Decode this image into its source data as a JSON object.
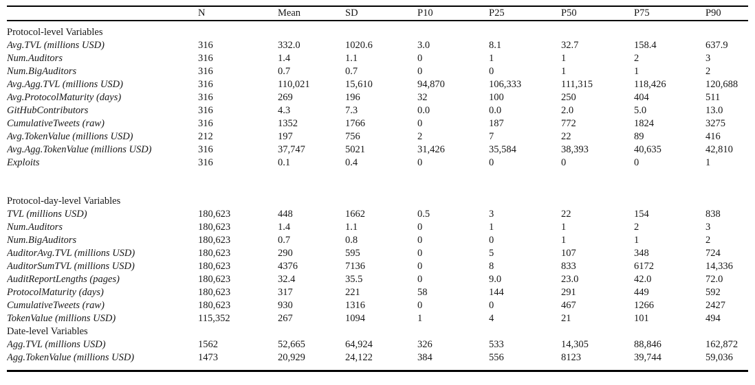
{
  "table": {
    "columns": [
      "N",
      "Mean",
      "SD",
      "P10",
      "P25",
      "P50",
      "P75",
      "P90"
    ],
    "sections": [
      {
        "title": "Protocol-level Variables",
        "gap_after": true,
        "rows": [
          {
            "label": "Avg.TVL (millions USD)",
            "values": [
              "316",
              "332.0",
              "1020.6",
              "3.0",
              "8.1",
              "32.7",
              "158.4",
              "637.9"
            ]
          },
          {
            "label": "Num.Auditors",
            "values": [
              "316",
              "1.4",
              "1.1",
              "0",
              "1",
              "1",
              "2",
              "3"
            ]
          },
          {
            "label": "Num.BigAuditors",
            "values": [
              "316",
              "0.7",
              "0.7",
              "0",
              "0",
              "1",
              "1",
              "2"
            ]
          },
          {
            "label": "Avg.Agg.TVL (millions USD)",
            "values": [
              "316",
              "110,021",
              "15,610",
              "94,870",
              "106,333",
              "111,315",
              "118,426",
              "120,688"
            ]
          },
          {
            "label": "Avg.ProtocolMaturity (days)",
            "values": [
              "316",
              "269",
              "196",
              "32",
              "100",
              "250",
              "404",
              "511"
            ]
          },
          {
            "label": "GitHubContributors",
            "values": [
              "316",
              "4.3",
              "7.3",
              "0.0",
              "0.0",
              "2.0",
              "5.0",
              "13.0"
            ]
          },
          {
            "label": "CumulativeTweets (raw)",
            "values": [
              "316",
              "1352",
              "1766",
              "0",
              "187",
              "772",
              "1824",
              "3275"
            ]
          },
          {
            "label": "Avg.TokenValue (millions USD)",
            "values": [
              "212",
              "197",
              "756",
              "2",
              "7",
              "22",
              "89",
              "416"
            ]
          },
          {
            "label": "Avg.Agg.TokenValue (millions USD)",
            "values": [
              "316",
              "37,747",
              "5021",
              "31,426",
              "35,584",
              "38,393",
              "40,635",
              "42,810"
            ]
          },
          {
            "label": "Exploits",
            "values": [
              "316",
              "0.1",
              "0.4",
              "0",
              "0",
              "0",
              "0",
              "1"
            ]
          }
        ]
      },
      {
        "title": "Protocol-day-level Variables",
        "gap_after": false,
        "rows": [
          {
            "label": "TVL (millions USD)",
            "values": [
              "180,623",
              "448",
              "1662",
              "0.5",
              "3",
              "22",
              "154",
              "838"
            ]
          },
          {
            "label": "Num.Auditors",
            "values": [
              "180,623",
              "1.4",
              "1.1",
              "0",
              "1",
              "1",
              "2",
              "3"
            ]
          },
          {
            "label": "Num.BigAuditors",
            "values": [
              "180,623",
              "0.7",
              "0.8",
              "0",
              "0",
              "1",
              "1",
              "2"
            ]
          },
          {
            "label": "AuditorAvg.TVL (millions USD)",
            "values": [
              "180,623",
              "290",
              "595",
              "0",
              "5",
              "107",
              "348",
              "724"
            ]
          },
          {
            "label": "AuditorSumTVL (millions USD)",
            "values": [
              "180,623",
              "4376",
              "7136",
              "0",
              "8",
              "833",
              "6172",
              "14,336"
            ]
          },
          {
            "label": "AuditReportLengths (pages)",
            "values": [
              "180,623",
              "32.4",
              "35.5",
              "0",
              "9.0",
              "23.0",
              "42.0",
              "72.0"
            ]
          },
          {
            "label": "ProtocolMaturity (days)",
            "values": [
              "180,623",
              "317",
              "221",
              "58",
              "144",
              "291",
              "449",
              "592"
            ]
          },
          {
            "label": "CumulativeTweets (raw)",
            "values": [
              "180,623",
              "930",
              "1316",
              "0",
              "0",
              "467",
              "1266",
              "2427"
            ]
          },
          {
            "label": "TokenValue (millions USD)",
            "values": [
              "115,352",
              "267",
              "1094",
              "1",
              "4",
              "21",
              "101",
              "494"
            ]
          }
        ]
      },
      {
        "title": "Date-level Variables",
        "gap_after": false,
        "rows": [
          {
            "label": "Agg.TVL (millions USD)",
            "values": [
              "1562",
              "52,665",
              "64,924",
              "326",
              "533",
              "14,305",
              "88,846",
              "162,872"
            ]
          },
          {
            "label": "Agg.TokenValue (millions USD)",
            "values": [
              "1473",
              "20,929",
              "24,122",
              "384",
              "556",
              "8123",
              "39,744",
              "59,036"
            ]
          }
        ]
      }
    ]
  }
}
